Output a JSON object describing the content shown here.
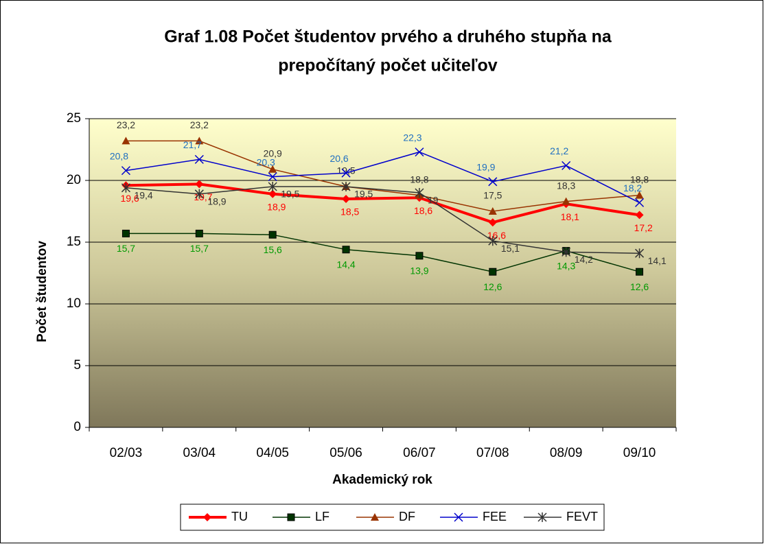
{
  "chart_data": {
    "type": "line",
    "title": [
      "Graf 1.08 Počet študentov prvého  a druhého stupňa na",
      "prepočítaný počet učiteľov"
    ],
    "x_label": "Akademický rok",
    "y_label": "Počet študentov",
    "categories": [
      "02/03",
      "03/04",
      "04/05",
      "05/06",
      "06/07",
      "07/08",
      "08/09",
      "09/10"
    ],
    "ylim": [
      0,
      25
    ],
    "yticks": [
      0,
      5,
      10,
      15,
      20,
      25
    ],
    "grid": true,
    "legend": "bottom",
    "series": [
      {
        "name": "TU",
        "color": "#ff0000",
        "marker": "diamond",
        "values": [
          19.6,
          19.7,
          18.9,
          18.5,
          18.6,
          16.6,
          18.1,
          17.2
        ],
        "value_labels": [
          "19,6",
          "19,7",
          "18,9",
          "18,5",
          "18,6",
          "16,6",
          "18,1",
          "17,2"
        ]
      },
      {
        "name": "LF",
        "color": "#003300",
        "marker": "square",
        "values": [
          15.7,
          15.7,
          15.6,
          14.4,
          13.9,
          12.6,
          14.3,
          12.6
        ],
        "value_labels": [
          "15,7",
          "15,7",
          "15,6",
          "14,4",
          "13,9",
          "12,6",
          "14,3",
          "12,6"
        ]
      },
      {
        "name": "DF",
        "color": "#993300",
        "marker": "triangle",
        "values": [
          23.2,
          23.2,
          20.9,
          19.5,
          18.8,
          17.5,
          18.3,
          18.8
        ],
        "value_labels": [
          "23,2",
          "23,2",
          "20,9",
          "19,5",
          "18,8",
          "17,5",
          "18,3",
          "18,8"
        ]
      },
      {
        "name": "FEE",
        "color": "#0000cc",
        "marker": "x",
        "values": [
          20.8,
          21.7,
          20.3,
          20.6,
          22.3,
          19.9,
          21.2,
          18.2
        ],
        "value_labels": [
          "20,8",
          "21,7",
          "20,3",
          "20,6",
          "22,3",
          "19,9",
          "21,2",
          "18,2"
        ]
      },
      {
        "name": "FEVT",
        "color": "#333333",
        "marker": "star",
        "values": [
          19.4,
          18.9,
          19.5,
          19.5,
          19,
          15.1,
          14.2,
          14.1
        ],
        "value_labels": [
          "19,4",
          "18,9",
          "19,5",
          "19,5",
          "19",
          "15,1",
          "14,2",
          "14,1"
        ]
      }
    ]
  }
}
